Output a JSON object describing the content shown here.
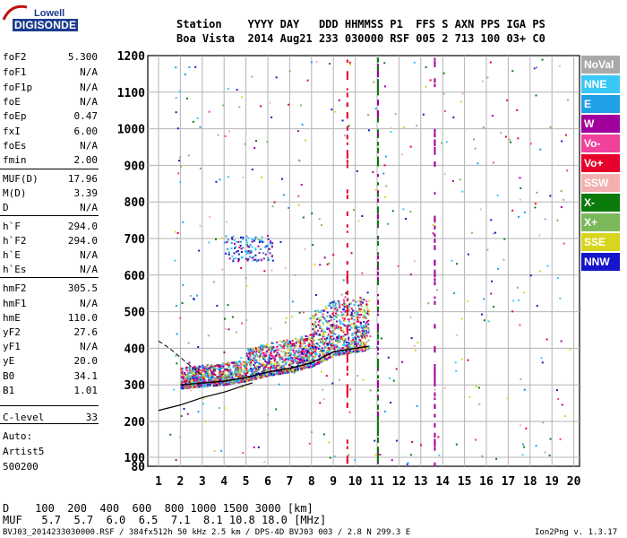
{
  "logo": {
    "line1": "Lowell",
    "line2": "DIGISONDE"
  },
  "header": {
    "line1": "Station    YYYY DAY   DDD HHMMSS P1  FFS S AXN PPS IGA PS",
    "line2": "Boa Vista  2014 Aug21 233 030000 RSF 005 2 713 100 03+ C0"
  },
  "params": [
    {
      "name": "foF2",
      "value": "5.300"
    },
    {
      "name": "foF1",
      "value": "N/A"
    },
    {
      "name": "foF1p",
      "value": "N/A"
    },
    {
      "name": "foE",
      "value": "N/A"
    },
    {
      "name": "foEp",
      "value": "0.47"
    },
    {
      "name": "fxI",
      "value": "6.00"
    },
    {
      "name": "foEs",
      "value": "N/A"
    },
    {
      "name": "fmin",
      "value": "2.00"
    },
    {
      "name": "MUF(D)",
      "value": "17.96"
    },
    {
      "name": "M(D)",
      "value": "3.39"
    },
    {
      "name": "D",
      "value": "N/A"
    },
    {
      "name": "h`F",
      "value": "294.0"
    },
    {
      "name": "h`F2",
      "value": "294.0"
    },
    {
      "name": "h`E",
      "value": "N/A"
    },
    {
      "name": "h`Es",
      "value": "N/A"
    },
    {
      "name": "hmF2",
      "value": "305.5"
    },
    {
      "name": "hmF1",
      "value": "N/A"
    },
    {
      "name": "hmE",
      "value": "110.0"
    },
    {
      "name": "yF2",
      "value": "27.6"
    },
    {
      "name": "yF1",
      "value": "N/A"
    },
    {
      "name": "yE",
      "value": "20.0"
    },
    {
      "name": "B0",
      "value": "34.1"
    },
    {
      "name": "B1",
      "value": "1.01"
    },
    {
      "name": "C-level",
      "value": "33"
    }
  ],
  "auto": {
    "line1": "Auto:",
    "line2": "Artist5",
    "line3": "500200"
  },
  "legend": [
    {
      "label": "NoVal",
      "color": "#a9a9a9"
    },
    {
      "label": "NNE",
      "color": "#39c8f5"
    },
    {
      "label": "E",
      "color": "#1da0e6"
    },
    {
      "label": "W",
      "color": "#a0009c"
    },
    {
      "label": "Vo-",
      "color": "#f0419b"
    },
    {
      "label": "Vo+",
      "color": "#e6002c"
    },
    {
      "label": "SSW",
      "color": "#f4b0b0"
    },
    {
      "label": "X-",
      "color": "#0a7a0a"
    },
    {
      "label": "X+",
      "color": "#7bb85c"
    },
    {
      "label": "SSE",
      "color": "#d7d51e"
    },
    {
      "label": "NNW",
      "color": "#1414c8"
    }
  ],
  "bottom": {
    "d_line": "D    100  200  400  600  800 1000 1500 3000 [km]",
    "muf_line": "MUF   5.7  5.7  6.0  6.5  7.1  8.1 10.8 18.0 [MHz]"
  },
  "footer": {
    "left": "BVJ03_2014233030000.RSF / 384fx512h 50 kHz 2.5 km / DPS-4D BVJ03 003 / 2.8 N 299.3 E",
    "right": "Ion2Png v. 1.3.17"
  },
  "chart_data": {
    "type": "scatter",
    "x_ticks": [
      "1",
      "2",
      "3",
      "4",
      "5",
      "6",
      "7",
      "8",
      "9",
      "10",
      "11",
      "12",
      "13",
      "14",
      "15",
      "16",
      "17",
      "18",
      "19",
      "20"
    ],
    "y_ticks": [
      "80",
      "100",
      "200",
      "300",
      "400",
      "500",
      "600",
      "700",
      "800",
      "900",
      "1000",
      "1100",
      "1200"
    ],
    "xlim": [
      1,
      20
    ],
    "ylim": [
      80,
      1200
    ],
    "grid": true,
    "trace": {
      "description_points": [
        {
          "f": 2.0,
          "h": 300
        },
        {
          "f": 3.0,
          "h": 305
        },
        {
          "f": 4.0,
          "h": 310
        },
        {
          "f": 5.0,
          "h": 320
        },
        {
          "f": 6.0,
          "h": 335
        },
        {
          "f": 7.0,
          "h": 345
        },
        {
          "f": 8.0,
          "h": 360
        },
        {
          "f": 9.0,
          "h": 390
        },
        {
          "f": 10.0,
          "h": 400
        },
        {
          "f": 10.6,
          "h": 405
        }
      ]
    },
    "profile_curve": [
      {
        "f": 1.0,
        "h": 230
      },
      {
        "f": 2.0,
        "h": 245
      },
      {
        "f": 3.0,
        "h": 265
      },
      {
        "f": 4.0,
        "h": 280
      },
      {
        "f": 5.0,
        "h": 300
      },
      {
        "f": 5.3,
        "h": 305.5
      }
    ],
    "dashed_curve": [
      {
        "f": 1.0,
        "h": 420
      },
      {
        "f": 1.5,
        "h": 400
      },
      {
        "f": 2.0,
        "h": 375
      },
      {
        "f": 2.5,
        "h": 350
      },
      {
        "f": 3.0,
        "h": 325
      }
    ]
  }
}
